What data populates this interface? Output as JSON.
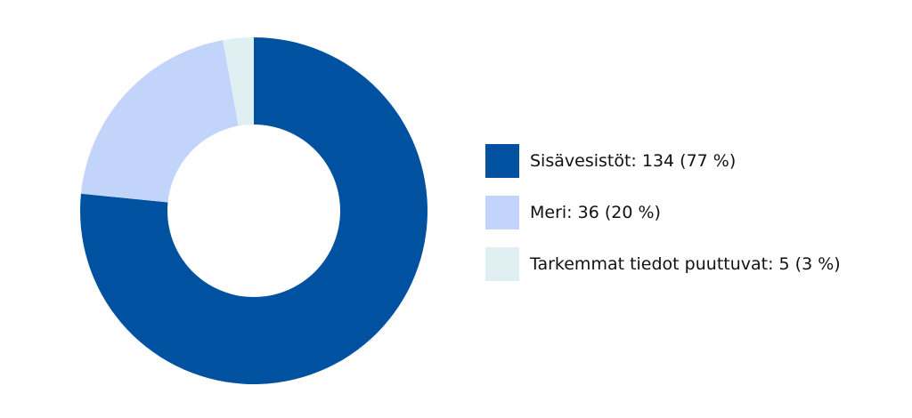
{
  "chart_data": {
    "type": "pie",
    "variant": "donut",
    "slices": [
      {
        "label": "Sisävesistöt: 134 (77 %)",
        "value": 134,
        "percent": 77,
        "color": "#0052a0"
      },
      {
        "label": "Meri: 36 (20 %)",
        "value": 36,
        "percent": 20,
        "color": "#c2d4fa"
      },
      {
        "label": "Tarkemmat tiedot puuttuvat: 5 (3 %)",
        "value": 5,
        "percent": 3,
        "color": "#e0f0f2"
      }
    ],
    "legend_position": "right"
  }
}
